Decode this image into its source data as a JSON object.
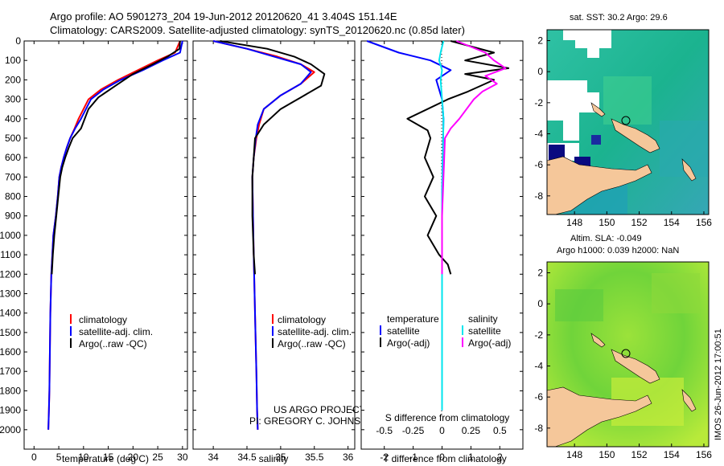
{
  "title_line1": "Argo profile: AO 5901273_204 19-Jun-2012 20120620_41 3.404S 151.14E",
  "title_line2": "Climatology: CARS2009. Satellite-adjusted climatology: synTS_20120620.nc (0.85d later)",
  "colors": {
    "climatology": "#ff0000",
    "satellite": "#0000ff",
    "argo": "#000000",
    "salinity_sat": "#00e5ee",
    "salinity_argo": "#ff00ff",
    "land": "#f5c79a"
  },
  "chart_data": [
    {
      "type": "line",
      "xlabel": "temperature (deg C)",
      "ylabel": "",
      "xlim": [
        -2,
        31
      ],
      "ylim": [
        2100,
        0
      ],
      "xticks": [
        "0",
        "5",
        "10",
        "15",
        "20",
        "25",
        "30"
      ],
      "yticks": [
        "0",
        "100",
        "200",
        "300",
        "400",
        "500",
        "600",
        "700",
        "800",
        "900",
        "1000",
        "1100",
        "1200",
        "1300",
        "1400",
        "1500",
        "1600",
        "1700",
        "1800",
        "1900",
        "2000"
      ],
      "legend": [
        "climatology",
        "satellite-adj. clim.",
        "Argo(..raw -QC)"
      ],
      "series": [
        {
          "name": "climatology",
          "color": "#ff0000",
          "x": [
            29.5,
            28.5,
            25,
            21,
            17,
            13.5,
            11,
            9,
            8.2,
            7.3,
            6.6,
            6,
            5.5,
            5.1,
            4.8,
            4.4,
            3.9,
            3.5,
            3.3,
            3.2,
            3.1,
            3.0,
            2.9
          ],
          "y": [
            0,
            60,
            100,
            150,
            200,
            250,
            300,
            400,
            450,
            500,
            550,
            600,
            650,
            700,
            800,
            900,
            1000,
            1200,
            1400,
            1600,
            1800,
            1900,
            2000
          ]
        },
        {
          "name": "satellite-adj. clim.",
          "color": "#0000ff",
          "x": [
            30,
            29.5,
            26,
            22,
            17.5,
            14,
            11.5,
            9.5,
            8.3,
            7.3,
            6.6,
            6,
            5.5,
            5.1,
            4.8,
            4.4,
            3.9,
            3.5,
            3.3,
            3.2,
            3.1,
            3.0,
            2.9
          ],
          "y": [
            0,
            60,
            100,
            150,
            200,
            250,
            300,
            400,
            450,
            500,
            550,
            600,
            650,
            700,
            800,
            900,
            1000,
            1200,
            1400,
            1600,
            1800,
            1900,
            2000
          ]
        },
        {
          "name": "Argo(..raw -QC)",
          "color": "#000000",
          "x": [
            29.5,
            29.4,
            27,
            24,
            20,
            16.5,
            13,
            11,
            9.5,
            7.8,
            7,
            6.3,
            5.7,
            5.3,
            4.9,
            4.5,
            4.1,
            3.8,
            3.6
          ],
          "y": [
            0,
            40,
            80,
            120,
            170,
            230,
            290,
            350,
            450,
            500,
            550,
            600,
            650,
            700,
            800,
            900,
            1000,
            1100,
            1200
          ]
        }
      ]
    },
    {
      "type": "line",
      "xlabel": "salinity",
      "ylabel": "",
      "xlim": [
        33.7,
        36.1
      ],
      "ylim": [
        2100,
        0
      ],
      "xticks": [
        "34",
        "34.5",
        "35",
        "35.5",
        "36"
      ],
      "legend": [
        "climatology",
        "satellite-adj. clim.",
        "Argo(..raw -QC)"
      ],
      "series": [
        {
          "name": "climatology",
          "color": "#ff0000",
          "x": [
            34.0,
            34.5,
            34.95,
            35.3,
            35.5,
            35.3,
            35.0,
            34.75,
            34.68,
            34.64,
            34.6,
            34.58,
            34.59,
            34.6,
            34.62,
            34.64,
            34.65,
            34.66
          ],
          "y": [
            0,
            40,
            80,
            120,
            160,
            220,
            280,
            350,
            430,
            500,
            600,
            700,
            900,
            1100,
            1400,
            1700,
            1900,
            2000
          ]
        },
        {
          "name": "satellite-adj. clim.",
          "color": "#0000ff",
          "x": [
            34.0,
            34.5,
            34.9,
            35.3,
            35.45,
            35.3,
            35.0,
            34.75,
            34.66,
            34.63,
            34.6,
            34.58,
            34.59,
            34.6,
            34.62,
            34.64,
            34.65,
            34.66
          ],
          "y": [
            0,
            40,
            80,
            120,
            160,
            220,
            280,
            350,
            430,
            500,
            600,
            700,
            900,
            1100,
            1400,
            1700,
            1900,
            2000
          ]
        },
        {
          "name": "Argo(..raw -QC)",
          "color": "#000000",
          "x": [
            34.1,
            34.8,
            35.2,
            35.45,
            35.65,
            35.6,
            35.3,
            35.0,
            34.75,
            34.62,
            34.6,
            34.58,
            34.58,
            34.6,
            34.62
          ],
          "y": [
            0,
            40,
            80,
            120,
            170,
            230,
            290,
            350,
            430,
            500,
            600,
            700,
            900,
            1100,
            1200
          ]
        }
      ],
      "annotation": [
        "US ARGO PROJECT",
        "PI: GREGORY C. JOHNSON"
      ]
    },
    {
      "type": "line",
      "xlabel": "T difference from climatology",
      "xlabel_top": "S difference from climatology",
      "xlim": [
        -2.8,
        2.8
      ],
      "ylim": [
        2100,
        0
      ],
      "xticks": [
        "-2",
        "-1",
        "0",
        "1",
        "2"
      ],
      "xticks_salinity": [
        "-0.5",
        "-0.25",
        "0",
        "0.25",
        "0.5"
      ],
      "legend_temperature": {
        "title": "temperature",
        "items": [
          "satellite",
          "Argo(-adj)"
        ]
      },
      "legend_salinity": {
        "title": "salinity",
        "items": [
          "satellite",
          "Argo(-adj)"
        ]
      },
      "series": [
        {
          "name": "temperature satellite",
          "color": "#0000ff",
          "x": [
            -2.6,
            -1.5,
            -0.4,
            0.3,
            -0.2,
            0,
            0.05,
            0,
            0
          ],
          "y": [
            0,
            60,
            100,
            150,
            200,
            300,
            400,
            800,
            1900
          ]
        },
        {
          "name": "temperature Argo(-adj)",
          "color": "#000000",
          "x": [
            0.3,
            1.8,
            0.8,
            2.3,
            0.8,
            1.8,
            0.9,
            0.2,
            -1.2,
            -0.5,
            -0.4,
            -0.6,
            -0.3,
            -0.6,
            -0.2,
            -0.5,
            -0.1,
            0.2,
            0.3
          ],
          "y": [
            0,
            60,
            100,
            140,
            170,
            200,
            260,
            300,
            400,
            460,
            500,
            600,
            700,
            800,
            900,
            1000,
            1100,
            1150,
            1200
          ]
        },
        {
          "name": "salinity satellite",
          "color": "#00e5ee",
          "x": [
            0.05,
            -0.05,
            -0.1,
            0,
            -0.05,
            0,
            0.05,
            0,
            0
          ],
          "y": [
            0,
            60,
            100,
            150,
            200,
            300,
            400,
            800,
            1900
          ]
        },
        {
          "name": "salinity Argo(-adj)",
          "color": "#ff00ff",
          "x": [
            0.5,
            1.5,
            1.8,
            2.2,
            1.5,
            1.9,
            1.4,
            1.1,
            0.6,
            0.3,
            0.1,
            0.05,
            0,
            0,
            0
          ],
          "y": [
            0,
            60,
            100,
            140,
            180,
            220,
            260,
            300,
            400,
            450,
            500,
            700,
            900,
            1100,
            1200
          ]
        }
      ]
    }
  ],
  "maps": [
    {
      "title_lines": [
        "sat. SST: 30.2 Argo: 29.6"
      ],
      "x_ticks": [
        "148",
        "150",
        "152",
        "154",
        "156"
      ],
      "y_ticks": [
        "2",
        "0",
        "-2",
        "-4",
        "-6",
        "-8"
      ]
    },
    {
      "title_lines": [
        "Altim. SLA: -0.049",
        "Argo h1000: 0.039 h2000: NaN"
      ],
      "x_ticks": [
        "148",
        "150",
        "152",
        "154",
        "156"
      ],
      "y_ticks": [
        "2",
        "0",
        "-2",
        "-4",
        "-6",
        "-8"
      ]
    }
  ],
  "footer": "IMOS 26-Jun-2012 17:00:51"
}
